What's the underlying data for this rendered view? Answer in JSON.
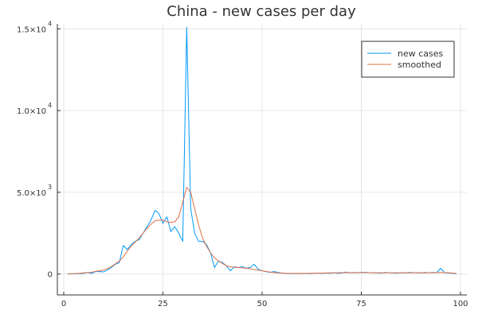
{
  "chart_data": {
    "type": "line",
    "title": "China - new cases per day",
    "xlabel": "",
    "ylabel": "",
    "xlim": [
      0,
      100
    ],
    "ylim": [
      -500,
      15500
    ],
    "grid": true,
    "legend_position": "top-right",
    "x_ticks": [
      {
        "value": 0,
        "label": "0"
      },
      {
        "value": 25,
        "label": "25"
      },
      {
        "value": 50,
        "label": "50"
      },
      {
        "value": 75,
        "label": "75"
      },
      {
        "value": 100,
        "label": "100"
      }
    ],
    "y_ticks": [
      {
        "value": 0,
        "mantissa": "0",
        "exponent": ""
      },
      {
        "value": 5000,
        "mantissa": "5.0×10",
        "exponent": "3"
      },
      {
        "value": 10000,
        "mantissa": "1.0×10",
        "exponent": "4"
      },
      {
        "value": 15000,
        "mantissa": "1.5×10",
        "exponent": "4"
      }
    ],
    "series": [
      {
        "name": "new cases",
        "color": "#009AFA",
        "x": [
          1,
          2,
          3,
          4,
          5,
          6,
          7,
          8,
          9,
          10,
          11,
          12,
          13,
          14,
          15,
          16,
          17,
          18,
          19,
          20,
          21,
          22,
          23,
          24,
          25,
          26,
          27,
          28,
          29,
          30,
          31,
          32,
          33,
          34,
          35,
          36,
          37,
          38,
          39,
          40,
          41,
          42,
          43,
          44,
          45,
          46,
          47,
          48,
          49,
          50,
          51,
          52,
          53,
          54,
          55,
          56,
          57,
          58,
          59,
          60,
          61,
          62,
          63,
          64,
          65,
          66,
          67,
          68,
          69,
          70,
          71,
          72,
          73,
          74,
          75,
          76,
          77,
          78,
          79,
          80,
          81,
          82,
          83,
          84,
          85,
          86,
          87,
          88,
          89,
          90,
          91,
          92,
          93,
          94,
          95,
          96,
          97,
          98,
          99
        ],
        "y": [
          0,
          20,
          20,
          30,
          40,
          100,
          40,
          150,
          150,
          130,
          250,
          400,
          600,
          700,
          1750,
          1500,
          1800,
          2000,
          2100,
          2500,
          2900,
          3300,
          3900,
          3700,
          3100,
          3500,
          2600,
          2900,
          2500,
          2000,
          15100,
          4000,
          2500,
          2000,
          2000,
          1800,
          1300,
          400,
          800,
          700,
          500,
          200,
          450,
          400,
          450,
          350,
          400,
          600,
          300,
          200,
          150,
          100,
          150,
          100,
          60,
          40,
          30,
          30,
          40,
          30,
          40,
          30,
          50,
          60,
          50,
          60,
          50,
          80,
          50,
          60,
          120,
          80,
          100,
          80,
          100,
          100,
          90,
          80,
          70,
          60,
          100,
          80,
          70,
          60,
          80,
          70,
          100,
          90,
          80,
          70,
          100,
          80,
          100,
          90,
          350,
          80,
          60,
          40,
          30
        ]
      },
      {
        "name": "smoothed",
        "color": "#E26F46",
        "x": [
          1,
          2,
          3,
          4,
          5,
          6,
          7,
          8,
          9,
          10,
          11,
          12,
          13,
          14,
          15,
          16,
          17,
          18,
          19,
          20,
          21,
          22,
          23,
          24,
          25,
          26,
          27,
          28,
          29,
          30,
          31,
          32,
          33,
          34,
          35,
          36,
          37,
          38,
          39,
          40,
          41,
          42,
          43,
          44,
          45,
          46,
          47,
          48,
          49,
          50,
          51,
          52,
          53,
          54,
          55,
          56,
          57,
          58,
          59,
          60,
          61,
          62,
          63,
          64,
          65,
          66,
          67,
          68,
          69,
          70,
          71,
          72,
          73,
          74,
          75,
          76,
          77,
          78,
          79,
          80,
          81,
          82,
          83,
          84,
          85,
          86,
          87,
          88,
          89,
          90,
          91,
          92,
          93,
          94,
          95,
          96,
          97,
          98,
          99
        ],
        "y": [
          10,
          20,
          30,
          50,
          70,
          90,
          110,
          160,
          200,
          250,
          330,
          450,
          620,
          800,
          1050,
          1400,
          1700,
          1950,
          2200,
          2500,
          2800,
          3050,
          3250,
          3300,
          3300,
          3200,
          3150,
          3200,
          3500,
          4400,
          5300,
          5000,
          4000,
          3000,
          2200,
          1700,
          1300,
          1000,
          800,
          650,
          500,
          450,
          420,
          400,
          380,
          350,
          320,
          280,
          240,
          200,
          160,
          120,
          90,
          70,
          55,
          45,
          40,
          40,
          40,
          40,
          40,
          45,
          50,
          55,
          60,
          65,
          70,
          75,
          80,
          85,
          90,
          90,
          90,
          90,
          90,
          90,
          85,
          80,
          80,
          80,
          80,
          80,
          80,
          80,
          80,
          80,
          80,
          80,
          80,
          80,
          80,
          80,
          85,
          85,
          90,
          90,
          80,
          60,
          40
        ]
      }
    ]
  }
}
